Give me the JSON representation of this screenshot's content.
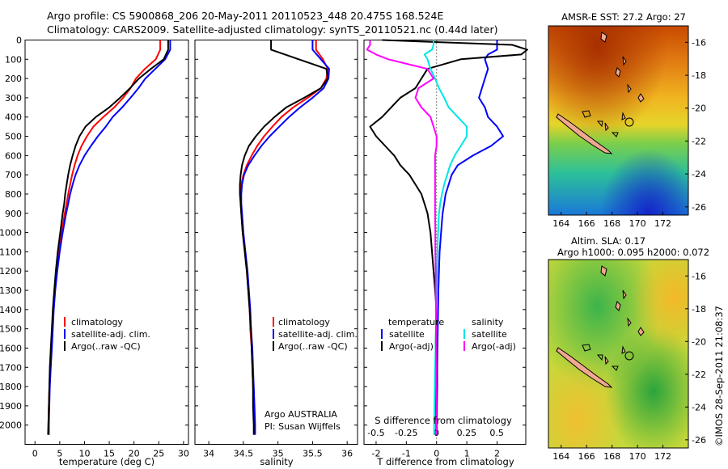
{
  "header": {
    "line1": "Argo profile: CS 5900868_206 20-May-2011 20110523_448 20.475S 168.524E",
    "line2": "Climatology: CARS2009. Satellite-adjusted climatology: synTS_20110521.nc (0.44d later)"
  },
  "colors": {
    "climatology": "#ff0000",
    "satellite": "#0000ff",
    "argo": "#000000",
    "sal_satellite": "#00e5e5",
    "sal_argo": "#ff00ff"
  },
  "depth_ticks": [
    "0",
    "100",
    "200",
    "300",
    "400",
    "500",
    "600",
    "700",
    "800",
    "900",
    "1000",
    "1100",
    "1200",
    "1300",
    "1400",
    "1500",
    "1600",
    "1700",
    "1800",
    "1900",
    "2000"
  ],
  "map_sst": {
    "title": "AMSR-E SST: 27.2 Argo: 27",
    "yticks": [
      "-16",
      "-18",
      "-20",
      "-22",
      "-24",
      "-26"
    ],
    "xticks": [
      "164",
      "166",
      "168",
      "170",
      "172"
    ]
  },
  "map_sla": {
    "title_line1": "Altim. SLA: 0.17",
    "title_line2": "Argo h1000: 0.095 h2000: 0.072",
    "yticks": [
      "-16",
      "-18",
      "-20",
      "-22",
      "-24",
      "-26"
    ],
    "xticks": [
      "164",
      "166",
      "168",
      "170",
      "172"
    ]
  },
  "footer": {
    "imos_stamp": "©IMOS 28-Sep-2011 21:08:37"
  },
  "chart_data": [
    {
      "type": "line",
      "panel": "temperature",
      "xlabel": "temperature (deg C)",
      "xlim": [
        -2,
        31
      ],
      "ylim": [
        2100,
        0
      ],
      "xticks": [
        "0",
        "5",
        "10",
        "15",
        "20",
        "25",
        "30"
      ],
      "legend": [
        "climatology",
        "satellite-adj. clim.",
        "Argo(..raw -QC)"
      ],
      "y": [
        0,
        50,
        100,
        150,
        200,
        250,
        300,
        350,
        400,
        450,
        500,
        550,
        600,
        650,
        700,
        750,
        800,
        850,
        900,
        1000,
        1100,
        1200,
        1300,
        1400,
        1500,
        1600,
        1700,
        1800,
        1900,
        2000,
        2050
      ],
      "series": [
        {
          "name": "climatology",
          "color": "#ff0000",
          "values": [
            25.3,
            25.3,
            24.4,
            22.2,
            20.4,
            19.3,
            17.8,
            16.0,
            13.8,
            11.8,
            10.5,
            9.4,
            8.6,
            8.0,
            7.5,
            7.1,
            6.7,
            6.4,
            6.0,
            5.4,
            4.9,
            4.4,
            4.0,
            3.7,
            3.5,
            3.3,
            3.1,
            2.9,
            2.8,
            2.7,
            2.6
          ]
        },
        {
          "name": "satellite-adj. clim.",
          "color": "#0000ff",
          "values": [
            27.3,
            27.3,
            26.3,
            24.3,
            22.3,
            20.9,
            19.3,
            17.6,
            15.7,
            14.3,
            12.7,
            11.3,
            10.0,
            9.0,
            8.2,
            7.6,
            7.1,
            6.7,
            6.3,
            5.6,
            5.0,
            4.5,
            4.1,
            3.8,
            3.6,
            3.4,
            3.2,
            3.0,
            2.9,
            2.8,
            2.8
          ]
        },
        {
          "name": "Argo(..raw -QC)",
          "color": "#000000",
          "values": [
            26.9,
            26.9,
            26.0,
            23.4,
            21.0,
            19.2,
            17.2,
            15.0,
            12.3,
            10.2,
            9.0,
            8.2,
            7.6,
            7.1,
            6.7,
            6.4,
            6.1,
            5.9,
            5.6,
            5.1,
            4.6,
            4.2,
            3.9,
            3.6,
            3.4,
            3.2,
            3.0,
            2.9,
            2.8,
            2.7,
            2.7
          ]
        }
      ]
    },
    {
      "type": "line",
      "panel": "salinity",
      "xlabel": "salinity",
      "xlim": [
        33.8,
        36.15
      ],
      "ylim": [
        2100,
        0
      ],
      "xticks": [
        "34",
        "34.5",
        "35",
        "35.5",
        "36"
      ],
      "legend": [
        "climatology",
        "satellite-adj. clim.",
        "Argo(..raw -QC)"
      ],
      "annotation": [
        "Argo AUSTRALIA",
        "PI: Susan Wijffels"
      ],
      "y": [
        0,
        50,
        100,
        150,
        200,
        250,
        300,
        350,
        400,
        450,
        500,
        550,
        600,
        650,
        700,
        750,
        800,
        850,
        900,
        1000,
        1100,
        1200,
        1300,
        1400,
        1500,
        1600,
        1700,
        1800,
        1900,
        2000,
        2050
      ],
      "series": [
        {
          "name": "climatology",
          "color": "#ff0000",
          "values": [
            35.55,
            35.55,
            35.65,
            35.72,
            35.7,
            35.62,
            35.43,
            35.22,
            35.05,
            34.92,
            34.8,
            34.7,
            34.62,
            34.55,
            34.5,
            34.47,
            34.46,
            34.46,
            34.47,
            34.49,
            34.52,
            34.55,
            34.57,
            34.59,
            34.6,
            34.62,
            34.63,
            34.64,
            34.65,
            34.66,
            34.66
          ]
        },
        {
          "name": "satellite-adj. clim.",
          "color": "#0000ff",
          "values": [
            35.5,
            35.5,
            35.62,
            35.74,
            35.73,
            35.66,
            35.5,
            35.32,
            35.16,
            35.02,
            34.88,
            34.76,
            34.66,
            34.57,
            34.51,
            34.48,
            34.47,
            34.47,
            34.48,
            34.5,
            34.53,
            34.56,
            34.58,
            34.6,
            34.61,
            34.63,
            34.64,
            34.65,
            34.66,
            34.67,
            34.67
          ]
        },
        {
          "name": "Argo(..raw -QC)",
          "color": "#000000",
          "values": [
            34.9,
            34.9,
            35.3,
            35.7,
            35.72,
            35.62,
            35.38,
            35.12,
            34.95,
            34.8,
            34.68,
            34.58,
            34.52,
            34.48,
            34.46,
            34.45,
            34.45,
            34.46,
            34.47,
            34.49,
            34.52,
            34.55,
            34.57,
            34.59,
            34.61,
            34.62,
            34.63,
            34.64,
            34.64,
            34.65,
            34.65
          ]
        }
      ]
    },
    {
      "type": "line",
      "panel": "difference",
      "xlabel": "T difference from climatology",
      "xlabel2": "S difference from climatology",
      "xlim": [
        -2.4,
        2.95
      ],
      "ylim": [
        2100,
        0
      ],
      "xticks": [
        "-2",
        "-1",
        "0",
        "1",
        "2"
      ],
      "xticks_top": [
        "-0.5",
        "-0.25",
        "0",
        "0.25",
        "0.5"
      ],
      "legend_temperature": [
        "temperature",
        "satellite",
        "Argo(-adj)"
      ],
      "legend_salinity": [
        "salinity",
        "satellite",
        "Argo(-adj)"
      ],
      "y": [
        0,
        25,
        50,
        75,
        100,
        150,
        200,
        250,
        300,
        350,
        400,
        450,
        500,
        550,
        600,
        650,
        700,
        750,
        800,
        850,
        900,
        1000,
        1100,
        1200,
        1300,
        1400,
        1500,
        1600,
        1700,
        1800,
        1900,
        2000,
        2050
      ],
      "series": [
        {
          "name": "temperature satellite",
          "color": "#0000ff",
          "values": [
            2.0,
            2.0,
            2.0,
            1.7,
            1.6,
            1.7,
            1.6,
            1.5,
            1.4,
            1.6,
            1.7,
            2.0,
            2.2,
            1.8,
            1.2,
            0.7,
            0.5,
            0.4,
            0.3,
            0.25,
            0.2,
            0.15,
            0.1,
            0.08,
            0.06,
            0.05,
            0.04,
            0.03,
            0.02,
            0.02,
            0.01,
            0.01,
            0.01
          ]
        },
        {
          "name": "temperature Argo(-adj)",
          "color": "#000000",
          "values": [
            -1.8,
            2.5,
            3.0,
            2.8,
            0.8,
            -0.3,
            -0.5,
            -0.7,
            -1.2,
            -1.5,
            -1.8,
            -2.2,
            -2.0,
            -1.7,
            -1.4,
            -1.2,
            -0.9,
            -0.7,
            -0.5,
            -0.4,
            -0.3,
            -0.2,
            -0.15,
            -0.1,
            -0.05,
            0.0,
            -0.02,
            -0.03,
            -0.03,
            -0.02,
            -0.02,
            -0.01,
            -0.01
          ]
        },
        {
          "name": "salinity satellite",
          "color": "#00e5e5",
          "values": [
            -0.1,
            -0.1,
            -0.15,
            -0.4,
            -0.3,
            -0.2,
            -0.05,
            0.08,
            0.25,
            0.4,
            0.7,
            1.0,
            1.0,
            0.8,
            0.6,
            0.45,
            0.35,
            0.25,
            0.18,
            0.12,
            0.08,
            0.05,
            0.03,
            0.02,
            0.01,
            0.0,
            -0.02,
            -0.03,
            -0.05,
            -0.06,
            -0.07,
            -0.08,
            -0.08
          ]
        },
        {
          "name": "salinity Argo(-adj)",
          "color": "#ff00ff",
          "values": [
            -2.2,
            -2.2,
            -2.3,
            -2.0,
            -1.6,
            -0.3,
            -0.1,
            -0.6,
            -0.7,
            -0.5,
            -0.2,
            -0.1,
            0.0,
            0.0,
            -0.05,
            -0.05,
            -0.05,
            -0.05,
            -0.05,
            -0.05,
            -0.05,
            -0.04,
            -0.04,
            -0.03,
            -0.03,
            -0.02,
            -0.02,
            -0.02,
            -0.01,
            -0.01,
            -0.01,
            0.0,
            0.0
          ]
        }
      ]
    }
  ]
}
